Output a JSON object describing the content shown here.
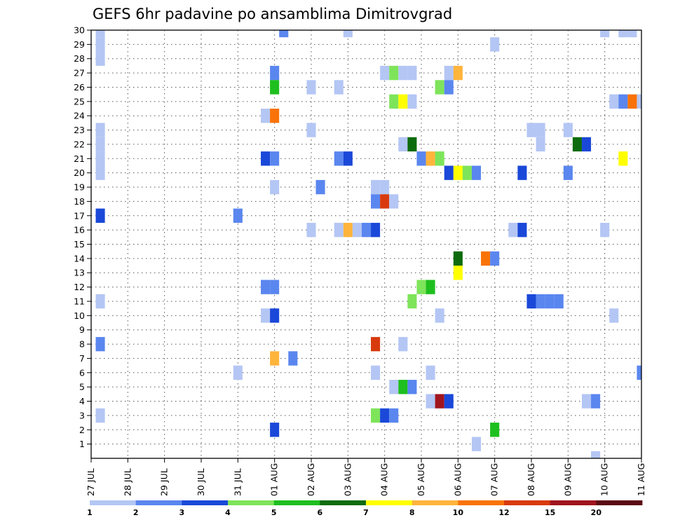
{
  "chart_data": {
    "type": "heatmap",
    "title": "GEFS 6hr padavine po ansamblima Dimitrovgrad",
    "xlabel": "",
    "ylabel": "",
    "x_tick_labels": [
      "27 JUL",
      "28 JUL",
      "29 JUL",
      "30 JUL",
      "31 JUL",
      "01 AUG",
      "02 AUG",
      "03 AUG",
      "04 AUG",
      "05 AUG",
      "06 AUG",
      "07 AUG",
      "08 AUG",
      "09 AUG",
      "10 AUG",
      "11 AUG"
    ],
    "y_tick_labels": [
      "1",
      "2",
      "3",
      "4",
      "5",
      "6",
      "7",
      "8",
      "9",
      "10",
      "11",
      "12",
      "13",
      "14",
      "15",
      "16",
      "17",
      "18",
      "19",
      "20",
      "21",
      "22",
      "23",
      "24",
      "25",
      "26",
      "27",
      "28",
      "29",
      "30"
    ],
    "x_range_steps": [
      0,
      60
    ],
    "y_range_members": [
      0,
      30
    ],
    "grid": true,
    "colorbar": {
      "labels": [
        "1",
        "2",
        "3",
        "4",
        "5",
        "6",
        "7",
        "8",
        "10",
        "12",
        "15",
        "20"
      ],
      "colors": [
        "#b4c6f4",
        "#5a86ef",
        "#1a48d8",
        "#7ee45a",
        "#1ebf1e",
        "#0d6b0d",
        "#ffff00",
        "#ffb43c",
        "#f97308",
        "#d83a0d",
        "#a0141e",
        "#5c0a14"
      ]
    },
    "cells": [
      [
        1,
        30,
        "#b4c6f4"
      ],
      [
        1,
        29,
        "#b4c6f4"
      ],
      [
        1,
        28,
        "#b4c6f4"
      ],
      [
        1,
        23,
        "#b4c6f4"
      ],
      [
        1,
        22,
        "#b4c6f4"
      ],
      [
        1,
        21,
        "#b4c6f4"
      ],
      [
        1,
        20,
        "#b4c6f4"
      ],
      [
        1,
        17,
        "#1a48d8"
      ],
      [
        1,
        11,
        "#b4c6f4"
      ],
      [
        1,
        8,
        "#5a86ef"
      ],
      [
        1,
        3,
        "#b4c6f4"
      ],
      [
        16,
        17,
        "#5a86ef"
      ],
      [
        16,
        6,
        "#b4c6f4"
      ],
      [
        19,
        24,
        "#b4c6f4"
      ],
      [
        19,
        21,
        "#1a48d8"
      ],
      [
        19,
        12,
        "#5a86ef"
      ],
      [
        19,
        10,
        "#b4c6f4"
      ],
      [
        20,
        27,
        "#5a86ef"
      ],
      [
        20,
        26,
        "#1ebf1e"
      ],
      [
        20,
        24,
        "#f97308"
      ],
      [
        20,
        21,
        "#5a86ef"
      ],
      [
        20,
        19,
        "#b4c6f4"
      ],
      [
        20,
        12,
        "#5a86ef"
      ],
      [
        20,
        10,
        "#1a48d8"
      ],
      [
        20,
        7,
        "#ffb43c"
      ],
      [
        20,
        2,
        "#1a48d8"
      ],
      [
        21,
        30,
        "#5a86ef"
      ],
      [
        22,
        7,
        "#5a86ef"
      ],
      [
        24,
        26,
        "#b4c6f4"
      ],
      [
        24,
        23,
        "#b4c6f4"
      ],
      [
        24,
        16,
        "#b4c6f4"
      ],
      [
        25,
        19,
        "#5a86ef"
      ],
      [
        27,
        26,
        "#b4c6f4"
      ],
      [
        27,
        21,
        "#5a86ef"
      ],
      [
        27,
        16,
        "#b4c6f4"
      ],
      [
        28,
        30,
        "#b4c6f4"
      ],
      [
        28,
        21,
        "#1a48d8"
      ],
      [
        28,
        16,
        "#ffb43c"
      ],
      [
        29,
        16,
        "#b4c6f4"
      ],
      [
        30,
        16,
        "#5a86ef"
      ],
      [
        31,
        19,
        "#b4c6f4"
      ],
      [
        31,
        18,
        "#5a86ef"
      ],
      [
        31,
        16,
        "#1a48d8"
      ],
      [
        31,
        8,
        "#d83a0d"
      ],
      [
        31,
        6,
        "#b4c6f4"
      ],
      [
        31,
        3,
        "#7ee45a"
      ],
      [
        32,
        27,
        "#b4c6f4"
      ],
      [
        32,
        19,
        "#b4c6f4"
      ],
      [
        32,
        18,
        "#d83a0d"
      ],
      [
        32,
        3,
        "#1a48d8"
      ],
      [
        33,
        27,
        "#7ee45a"
      ],
      [
        33,
        25,
        "#7ee45a"
      ],
      [
        33,
        18,
        "#b4c6f4"
      ],
      [
        33,
        5,
        "#b4c6f4"
      ],
      [
        33,
        3,
        "#5a86ef"
      ],
      [
        34,
        27,
        "#b4c6f4"
      ],
      [
        34,
        25,
        "#ffff00"
      ],
      [
        34,
        22,
        "#b4c6f4"
      ],
      [
        34,
        8,
        "#b4c6f4"
      ],
      [
        34,
        5,
        "#1ebf1e"
      ],
      [
        35,
        27,
        "#b4c6f4"
      ],
      [
        35,
        25,
        "#b4c6f4"
      ],
      [
        35,
        22,
        "#0d6b0d"
      ],
      [
        35,
        11,
        "#7ee45a"
      ],
      [
        35,
        5,
        "#5a86ef"
      ],
      [
        36,
        21,
        "#5a86ef"
      ],
      [
        36,
        12,
        "#7ee45a"
      ],
      [
        37,
        21,
        "#ffb43c"
      ],
      [
        37,
        12,
        "#1ebf1e"
      ],
      [
        37,
        6,
        "#b4c6f4"
      ],
      [
        37,
        4,
        "#b4c6f4"
      ],
      [
        38,
        26,
        "#7ee45a"
      ],
      [
        38,
        21,
        "#7ee45a"
      ],
      [
        38,
        10,
        "#b4c6f4"
      ],
      [
        38,
        4,
        "#a0141e"
      ],
      [
        39,
        27,
        "#b4c6f4"
      ],
      [
        39,
        26,
        "#5a86ef"
      ],
      [
        39,
        20,
        "#1a48d8"
      ],
      [
        39,
        4,
        "#1a48d8"
      ],
      [
        40,
        27,
        "#ffb43c"
      ],
      [
        40,
        20,
        "#ffff00"
      ],
      [
        40,
        14,
        "#0d6b0d"
      ],
      [
        40,
        13,
        "#ffff00"
      ],
      [
        41,
        20,
        "#7ee45a"
      ],
      [
        42,
        20,
        "#5a86ef"
      ],
      [
        42,
        1,
        "#b4c6f4"
      ],
      [
        43,
        14,
        "#f97308"
      ],
      [
        44,
        29,
        "#b4c6f4"
      ],
      [
        44,
        14,
        "#5a86ef"
      ],
      [
        44,
        2,
        "#1ebf1e"
      ],
      [
        46,
        16,
        "#b4c6f4"
      ],
      [
        47,
        20,
        "#1a48d8"
      ],
      [
        47,
        16,
        "#1a48d8"
      ],
      [
        48,
        23,
        "#b4c6f4"
      ],
      [
        48,
        11,
        "#1a48d8"
      ],
      [
        49,
        23,
        "#b4c6f4"
      ],
      [
        49,
        22,
        "#b4c6f4"
      ],
      [
        49,
        11,
        "#5a86ef"
      ],
      [
        50,
        11,
        "#5a86ef"
      ],
      [
        51,
        11,
        "#5a86ef"
      ],
      [
        52,
        23,
        "#b4c6f4"
      ],
      [
        52,
        20,
        "#5a86ef"
      ],
      [
        53,
        22,
        "#0d6b0d"
      ],
      [
        54,
        22,
        "#1a48d8"
      ],
      [
        54,
        4,
        "#b4c6f4"
      ],
      [
        55,
        4,
        "#5a86ef"
      ],
      [
        55,
        0,
        "#b4c6f4"
      ],
      [
        56,
        30,
        "#b4c6f4"
      ],
      [
        56,
        16,
        "#b4c6f4"
      ],
      [
        57,
        25,
        "#b4c6f4"
      ],
      [
        57,
        10,
        "#b4c6f4"
      ],
      [
        58,
        30,
        "#b4c6f4"
      ],
      [
        58,
        25,
        "#5a86ef"
      ],
      [
        58,
        21,
        "#ffff00"
      ],
      [
        59,
        30,
        "#b4c6f4"
      ],
      [
        59,
        25,
        "#f97308"
      ],
      [
        60,
        25,
        "#b4c6f4"
      ],
      [
        60,
        6,
        "#5a86ef"
      ]
    ]
  }
}
